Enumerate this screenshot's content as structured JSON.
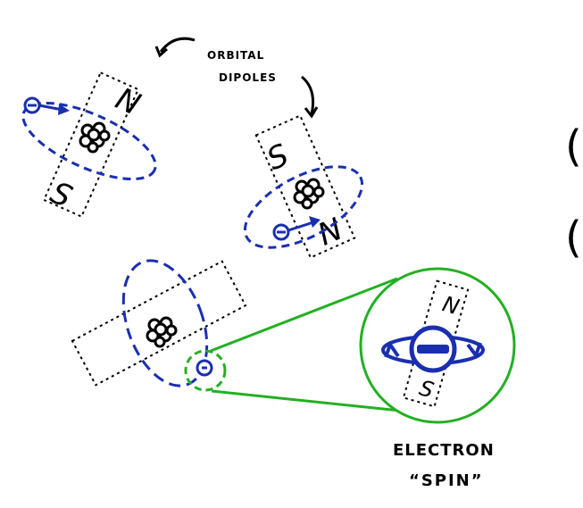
{
  "labels": {
    "orbital_line1": "ORBITAL",
    "orbital_line2": "DIPOLES",
    "electron": "ELECTRON",
    "spin": "“SPIN”",
    "north": "N",
    "south": "S",
    "electron_symbol": "⊖",
    "partial_right_1": "(",
    "partial_right_2": "("
  },
  "colors": {
    "ink": "#000000",
    "orbit": "#1a2fb0",
    "zoom": "#22b022",
    "background": "#ffffff"
  },
  "icons": [
    "nucleus-icon",
    "electron-icon",
    "magnet-icon",
    "curved-arrow-icon",
    "spin-arrow-icon"
  ]
}
